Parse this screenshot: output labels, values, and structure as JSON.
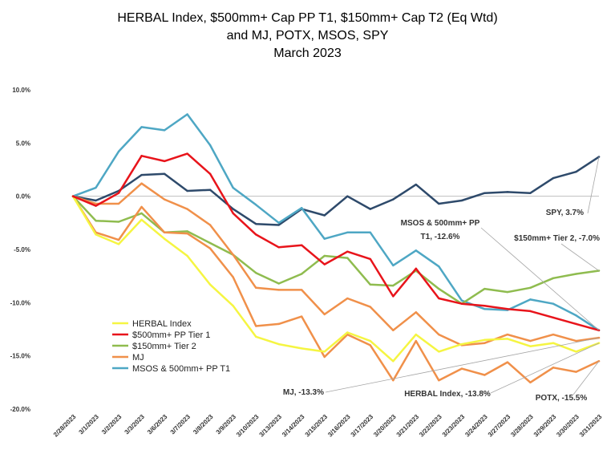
{
  "chart_data": {
    "type": "line",
    "title_lines": [
      "HERBAL Index, $500mm+ Cap PP T1, $150mm+ Cap T2  (Eq Wtd)",
      "and MJ, POTX, MSOS, SPY",
      "March 2023"
    ],
    "x": [
      "2/28/2023",
      "3/1/2023",
      "3/2/2023",
      "3/3/2023",
      "3/6/2023",
      "3/7/2023",
      "3/8/2023",
      "3/9/2023",
      "3/10/2023",
      "3/13/2023",
      "3/14/2023",
      "3/15/2023",
      "3/16/2023",
      "3/17/2023",
      "3/20/2023",
      "3/21/2023",
      "3/22/2023",
      "3/23/2023",
      "3/24/2023",
      "3/27/2023",
      "3/28/2023",
      "3/29/2023",
      "3/30/2023",
      "3/31/2023"
    ],
    "ylim": [
      -20,
      10
    ],
    "yticks": [
      10,
      5,
      0,
      -5,
      -10,
      -15,
      -20
    ],
    "ytick_labels": [
      "10.0%",
      "5.0%",
      "0.0%",
      "-5.0%",
      "-10.0%",
      "-15.0%",
      "-20.0%"
    ],
    "grid": false,
    "legend_position": "left",
    "series": [
      {
        "name": "HERBAL Index",
        "color": "#f5f542",
        "in_legend": true,
        "values": [
          0,
          -3.6,
          -4.5,
          -2.2,
          -4.0,
          -5.6,
          -8.3,
          -10.3,
          -13.2,
          -13.9,
          -14.3,
          -14.6,
          -12.8,
          -13.6,
          -15.5,
          -13.0,
          -14.6,
          -13.9,
          -13.5,
          -13.4,
          -14.1,
          -13.8,
          -14.6,
          -13.8
        ]
      },
      {
        "name": "$500mm+ PP Tier 1",
        "color": "#e8141b",
        "in_legend": true,
        "values": [
          0,
          -0.9,
          0.3,
          3.8,
          3.3,
          4.0,
          2.1,
          -1.6,
          -3.6,
          -4.8,
          -4.6,
          -6.4,
          -5.2,
          -5.9,
          -9.4,
          -6.8,
          -9.6,
          -10.1,
          -10.3,
          -10.6,
          -10.8,
          -11.4,
          -12.0,
          -12.6
        ]
      },
      {
        "name": "$150mm+ Tier 2",
        "color": "#8fbc4f",
        "in_legend": true,
        "values": [
          0,
          -2.3,
          -2.4,
          -1.6,
          -3.4,
          -3.3,
          -4.4,
          -5.5,
          -7.2,
          -8.2,
          -7.3,
          -5.6,
          -5.8,
          -8.3,
          -8.4,
          -7.0,
          -8.7,
          -10.1,
          -8.7,
          -9.0,
          -8.6,
          -7.7,
          -7.3,
          -7.0
        ]
      },
      {
        "name": "MJ",
        "color": "#f0904a",
        "in_legend": true,
        "values": [
          0,
          -0.7,
          -0.7,
          1.2,
          -0.3,
          -1.2,
          -2.7,
          -5.5,
          -8.6,
          -8.8,
          -8.8,
          -11.1,
          -9.6,
          -10.4,
          -12.6,
          -10.9,
          -13.0,
          -14.0,
          -13.8,
          -13.0,
          -13.6,
          -13.0,
          -13.6,
          -13.3
        ]
      },
      {
        "name": "MSOS & 500mm+ PP T1",
        "color": "#4ea7c4",
        "in_legend": true,
        "values": [
          0,
          0.8,
          4.2,
          6.5,
          6.2,
          7.7,
          4.8,
          0.8,
          -0.8,
          -2.5,
          -1.1,
          -4.0,
          -3.4,
          -3.4,
          -6.5,
          -5.1,
          -6.6,
          -9.8,
          -10.6,
          -10.7,
          -9.7,
          -10.1,
          -11.2,
          -12.6
        ]
      },
      {
        "name": "POTX",
        "color": "#f0904a",
        "in_legend": false,
        "values": [
          0,
          -3.4,
          -4.1,
          -1.0,
          -3.4,
          -3.5,
          -4.9,
          -7.6,
          -12.2,
          -12.0,
          -11.3,
          -15.1,
          -13.0,
          -14.0,
          -17.3,
          -13.6,
          -17.3,
          -16.2,
          -16.8,
          -15.6,
          -17.5,
          -16.1,
          -16.5,
          -15.5
        ]
      },
      {
        "name": "SPY",
        "color": "#2e4a6b",
        "in_legend": false,
        "values": [
          0,
          -0.4,
          0.5,
          2.0,
          2.1,
          0.5,
          0.6,
          -1.2,
          -2.6,
          -2.7,
          -1.2,
          -1.8,
          0.0,
          -1.2,
          -0.3,
          1.1,
          -0.7,
          -0.4,
          0.3,
          0.4,
          0.3,
          1.7,
          2.3,
          3.7
        ]
      }
    ],
    "annotations": [
      {
        "lines": [
          "SPY, 3.7%"
        ]
      },
      {
        "lines": [
          "MSOS & 500mm+ PP",
          "T1, -12.6%"
        ]
      },
      {
        "lines": [
          "$150mm+ Tier 2, -7.0%"
        ]
      },
      {
        "lines": [
          "MJ, -13.3%"
        ]
      },
      {
        "lines": [
          "HERBAL Index, -13.8%"
        ]
      },
      {
        "lines": [
          "POTX, -15.5%"
        ]
      }
    ]
  }
}
